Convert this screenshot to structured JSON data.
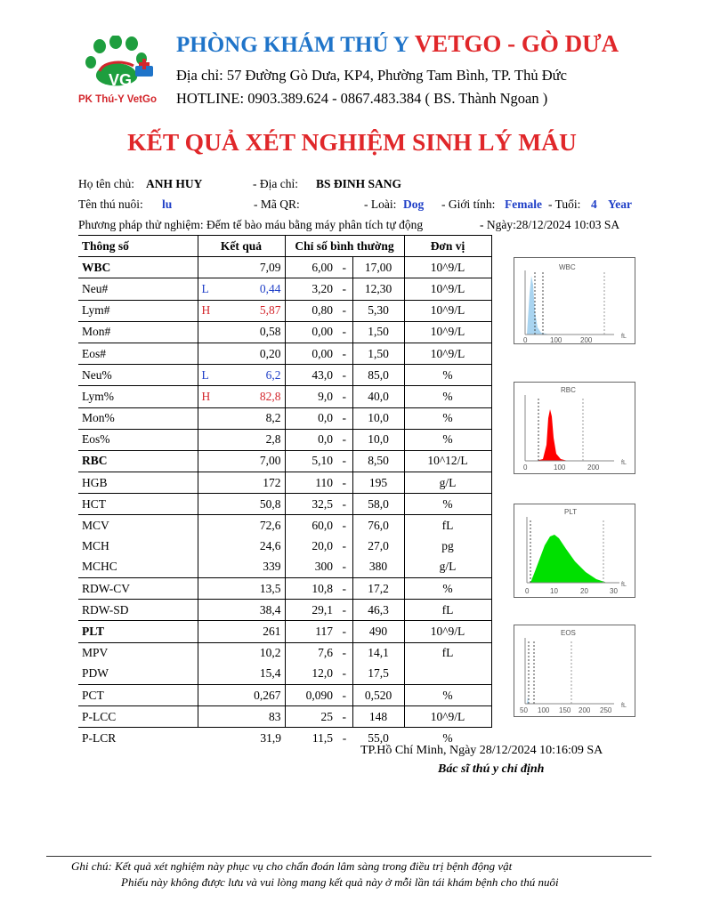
{
  "header": {
    "logo_caption": "PK Thú-Y VetGo",
    "logo_letters": "VG",
    "clinic_name_a": "PHÒNG KHÁM THÚ Y",
    "clinic_name_b": "VETGO - GÒ DƯA",
    "address": "Địa chỉ: 57 Đường Gò Dưa, KP4, Phường Tam Bình, TP. Thủ Đức",
    "hotline": "HOTLINE: 0903.389.624 - 0867.483.384 ( BS. Thành Ngoan )"
  },
  "title": "KẾT QUẢ XÉT NGHIỆM SINH LÝ MÁU",
  "info": {
    "owner_label": "Họ tên chủ:",
    "owner": "ANH HUY",
    "address_label": "- Địa chỉ:",
    "address": "BS ĐINH SANG",
    "pet_label": "Tên thú nuôi:",
    "pet": "lu",
    "qr_label": "- Mã QR:",
    "species_label": "- Loài:",
    "species": "Dog",
    "sex_label": "- Giới tính:",
    "sex": "Female",
    "age_label": "- Tuổi:",
    "age": "4",
    "age_unit": "Year",
    "method": "Phương pháp thử nghiệm: Đếm tế bào máu bằng máy phân tích tự động",
    "date": "- Ngày:28/12/2024 10:03 SA"
  },
  "table": {
    "headers": {
      "param": "Thông số",
      "result": "Kết quả",
      "normal": "Chỉ số bình thường",
      "unit": "Đơn vị"
    },
    "rows": [
      {
        "name": "WBC",
        "flag": "",
        "value": "7,09",
        "low": "6,00",
        "dash": "-",
        "high": "17,00",
        "unit": "10^9/L"
      },
      {
        "name": "Neu#",
        "flag": "L",
        "value": "0,44",
        "low": "3,20",
        "dash": "-",
        "high": "12,30",
        "unit": "10^9/L"
      },
      {
        "name": "Lym#",
        "flag": "H",
        "value": "5,87",
        "low": "0,80",
        "dash": "-",
        "high": "5,30",
        "unit": "10^9/L"
      },
      {
        "name": "Mon#",
        "flag": "",
        "value": "0,58",
        "low": "0,00",
        "dash": "-",
        "high": "1,50",
        "unit": "10^9/L"
      },
      {
        "name": "Eos#",
        "flag": "",
        "value": "0,20",
        "low": "0,00",
        "dash": "-",
        "high": "1,50",
        "unit": "10^9/L"
      },
      {
        "name": "Neu%",
        "flag": "L",
        "value": "6,2",
        "low": "43,0",
        "dash": "-",
        "high": "85,0",
        "unit": "%"
      },
      {
        "name": "Lym%",
        "flag": "H",
        "value": "82,8",
        "low": "9,0",
        "dash": "-",
        "high": "40,0",
        "unit": "%"
      },
      {
        "name": "Mon%",
        "flag": "",
        "value": "8,2",
        "low": "0,0",
        "dash": "-",
        "high": "10,0",
        "unit": "%"
      },
      {
        "name": "Eos%",
        "flag": "",
        "value": "2,8",
        "low": "0,0",
        "dash": "-",
        "high": "10,0",
        "unit": "%"
      },
      {
        "name": "RBC",
        "flag": "",
        "value": "7,00",
        "low": "5,10",
        "dash": "-",
        "high": "8,50",
        "unit": "10^12/L"
      },
      {
        "name": "HGB",
        "flag": "",
        "value": "172",
        "low": "110",
        "dash": "-",
        "high": "195",
        "unit": "g/L"
      },
      {
        "name": "HCT",
        "flag": "",
        "value": "50,8",
        "low": "32,5",
        "dash": "-",
        "high": "58,0",
        "unit": "%"
      },
      {
        "name": "MCV",
        "flag": "",
        "value": "72,6",
        "low": "60,0",
        "dash": "-",
        "high": "76,0",
        "unit": "fL"
      },
      {
        "name": "MCH",
        "flag": "",
        "value": "24,6",
        "low": "20,0",
        "dash": "-",
        "high": "27,0",
        "unit": "pg"
      },
      {
        "name": "MCHC",
        "flag": "",
        "value": "339",
        "low": "300",
        "dash": "-",
        "high": "380",
        "unit": "g/L"
      },
      {
        "name": "RDW-CV",
        "flag": "",
        "value": "13,5",
        "low": "10,8",
        "dash": "-",
        "high": "17,2",
        "unit": "%"
      },
      {
        "name": "RDW-SD",
        "flag": "",
        "value": "38,4",
        "low": "29,1",
        "dash": "-",
        "high": "46,3",
        "unit": "fL"
      },
      {
        "name": "PLT",
        "flag": "",
        "value": "261",
        "low": "117",
        "dash": "-",
        "high": "490",
        "unit": "10^9/L"
      },
      {
        "name": "MPV",
        "flag": "",
        "value": "10,2",
        "low": "7,6",
        "dash": "-",
        "high": "14,1",
        "unit": "fL"
      },
      {
        "name": "PDW",
        "flag": "",
        "value": "15,4",
        "low": "12,0",
        "dash": "-",
        "high": "17,5",
        "unit": ""
      },
      {
        "name": "PCT",
        "flag": "",
        "value": "0,267",
        "low": "0,090",
        "dash": "-",
        "high": "0,520",
        "unit": "%"
      },
      {
        "name": "P-LCC",
        "flag": "",
        "value": "83",
        "low": "25",
        "dash": "-",
        "high": "148",
        "unit": "10^9/L"
      },
      {
        "name": "P-LCR",
        "flag": "",
        "value": "31,9",
        "low": "11,5",
        "dash": "-",
        "high": "55,0",
        "unit": "%"
      }
    ]
  },
  "histograms": {
    "wbc": {
      "title": "WBC",
      "ticks": [
        "0",
        "100",
        "200"
      ],
      "unit": "fL",
      "color": "#a9d4f0"
    },
    "rbc": {
      "title": "RBC",
      "ticks": [
        "0",
        "100",
        "200"
      ],
      "unit": "fL",
      "color": "#ff0000"
    },
    "plt": {
      "title": "PLT",
      "ticks": [
        "0",
        "10",
        "20",
        "30"
      ],
      "unit": "fL",
      "color": "#00e000"
    },
    "eos": {
      "title": "EOS",
      "ticks": [
        "50",
        "100",
        "150",
        "200",
        "250"
      ],
      "unit": "fL",
      "color": "#a9d4f0"
    }
  },
  "footer": {
    "sign_date": "TP.Hồ Chí Minh, Ngày  28/12/2024 10:16:09 SA",
    "sign_title": "Bác sĩ thú y chỉ định",
    "note1": "Ghi chú: Kết quả xét nghiệm này phục vụ cho chẩn đoán lâm sàng trong điều trị bệnh động vật",
    "note2": "Phiếu này không được lưu và vui lòng mang kết quả này ở mỗi lần tái khám bệnh cho thú nuôi"
  }
}
